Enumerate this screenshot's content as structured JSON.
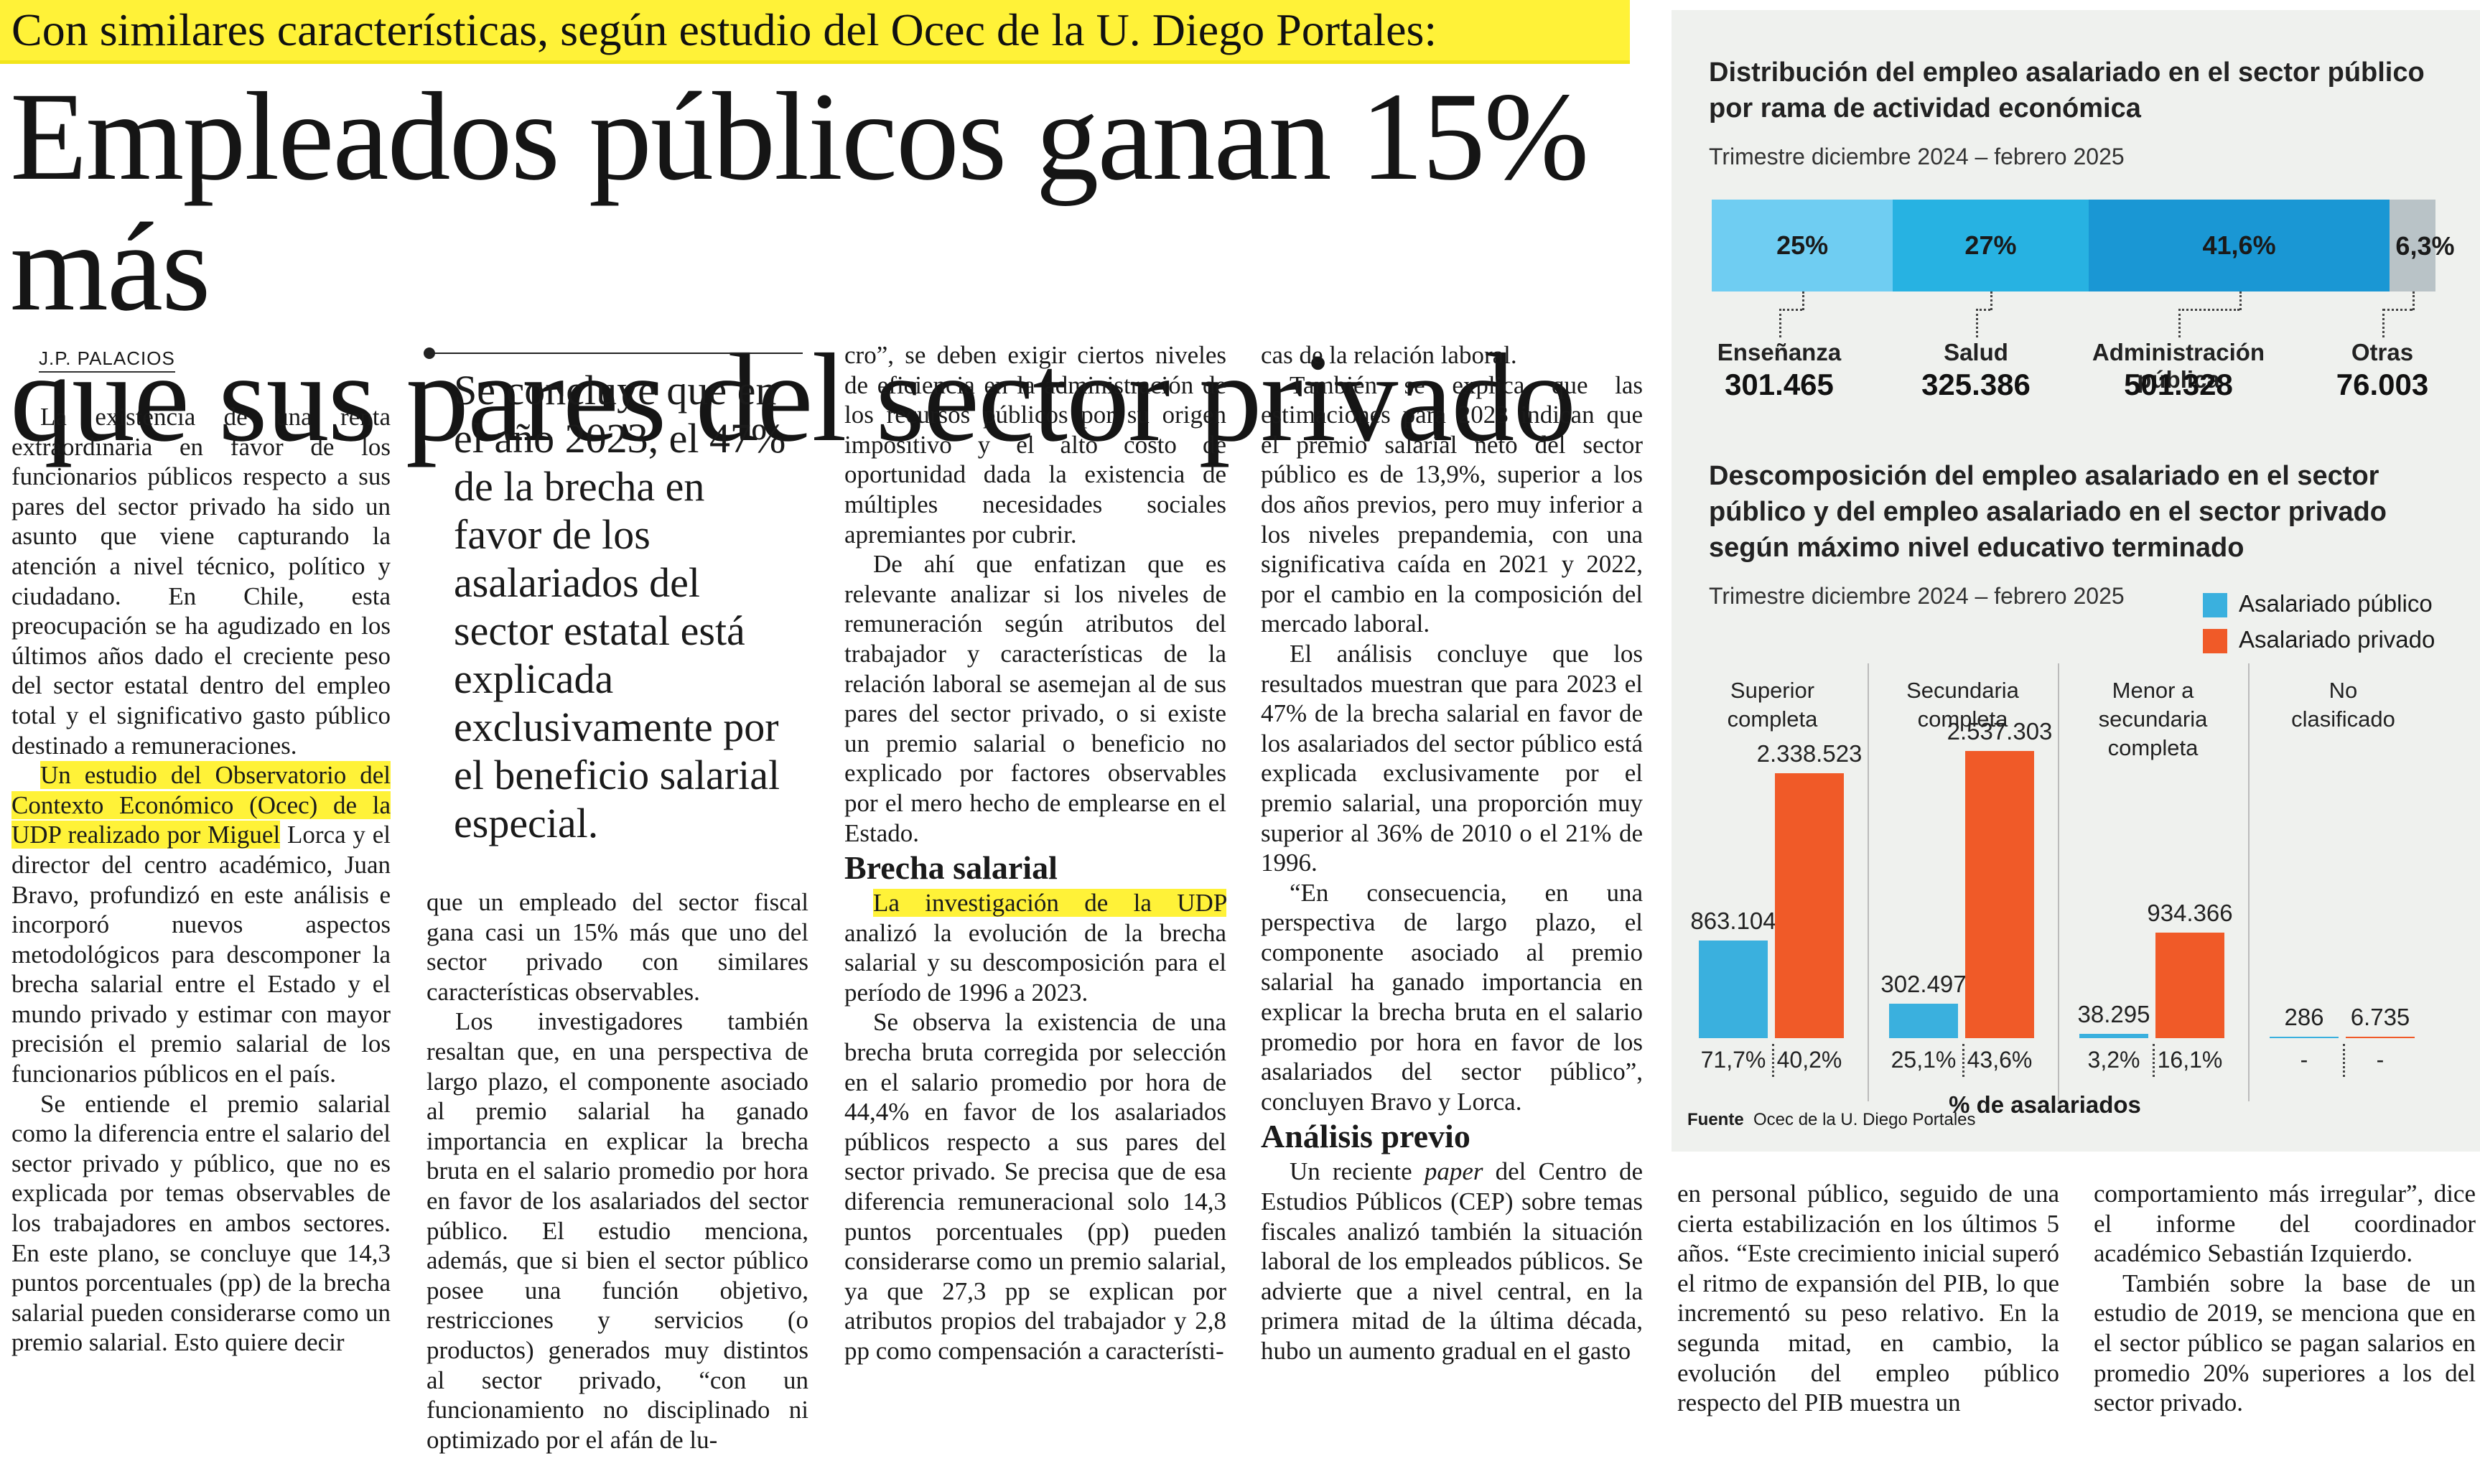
{
  "kicker": "Con similares características, según estudio del Ocec de la U. Diego Portales:",
  "headline": {
    "line1": "Empleados públicos ganan 15% más",
    "line2": "que sus pares del sector privado"
  },
  "byline": "J.P. PALACIOS",
  "pull_quote": "Se concluye que en el año 2023, el 47% de la brecha en favor de los asalariados del sector estatal está explicada exclusivamente por el beneficio salarial especial.",
  "col1": {
    "p1": "La existencia de una renta extraordinaria en favor de los funcionarios públicos respecto a sus pares del sector privado ha sido un asunto que viene capturando la atención a nivel técnico, político y ciudadano. En Chile, esta preocupación se ha agudizado en los últimos años dado el creciente peso del sector estatal dentro del empleo total y el significativo gasto público destinado a remuneraciones.",
    "p2_hl": "Un estudio del Observatorio del Contexto Económico (Ocec) de la UDP realizado por Miguel",
    "p2_rest": "Lorca y el director del centro académico, Juan Bravo, profundizó en este análisis e incorporó nuevos aspectos metodológicos para descomponer la brecha salarial entre el Estado y el mundo privado y estimar con mayor precisión el premio salarial de los funcionarios públicos en el país.",
    "p3": "Se entiende el premio salarial como la diferencia entre el salario del sector privado y público, que no es explicada por temas observables de los trabajadores en ambos sectores. En este plano, se concluye que 14,3 puntos porcentuales (pp) de la brecha salarial pueden considerarse como un premio salarial. Esto quiere decir"
  },
  "col2": {
    "p1": "que un empleado del sector fiscal gana casi un 15% más que uno del sector privado con similares características observables.",
    "p2": "Los investigadores también resaltan que, en una perspectiva de largo plazo, el componente asociado al premio salarial ha ganado importancia en explicar la brecha bruta en el salario promedio por hora en favor de los asalariados del sector público. El estudio menciona, además, que si bien el sector público posee una función objetivo, restricciones y servicios (o productos) generados muy distintos al sector privado, “con un funcionamiento no disciplinado ni optimizado por el afán de lu-"
  },
  "col3": {
    "p1": "cro”, se deben exigir ciertos niveles de eficiencia en la administración de los recursos públicos por su origen impositivo y el alto costo de oportunidad dada la existencia de múltiples necesidades sociales apremiantes por cubrir.",
    "p2": "De ahí que enfatizan que es relevante analizar si los niveles de remuneración según atributos del trabajador y características de la relación laboral se asemejan al de sus pares del sector privado, o si existe un premio salarial o beneficio no explicado por factores observables por el mero hecho de emplearse en el Estado.",
    "sub": "Brecha salarial",
    "p3_hl": "La investigación de la UDP",
    "p3_rest": "analizó la evolución de la brecha salarial y su descomposición para el período de 1996 a 2023.",
    "p4": "Se observa la existencia de una brecha bruta corregida por selección en el salario promedio por hora de 44,4% en favor de los asalariados públicos respecto a sus pares del sector privado. Se precisa que de esa diferencia remuneracional solo 14,3 puntos porcentuales (pp) pueden considerarse como un premio salarial, ya que 27,3 pp se explican por atributos propios del trabajador y 2,8 pp como compensación a característi-"
  },
  "col4": {
    "p1": "cas de la relación laboral.",
    "p2": "También se explica que las estimaciones para 2023 indican que el premio salarial neto del sector público es de 13,9%, superior a los dos años previos, pero muy inferior a los niveles prepandemia, con una significativa caída en 2021 y 2022, por el cambio en la composición del mercado laboral.",
    "p3": "El análisis concluye que los resultados muestran que para 2023 el 47% de la brecha salarial en favor de los asalariados del sector público está explicada exclusivamente por el premio salarial, una proporción muy superior al 36% de 2010 o el 21% de 1996.",
    "p4": "“En consecuencia, en una perspectiva de largo plazo, el componente asociado al premio salarial ha ganado importancia en explicar la brecha bruta en el salario promedio por hora en favor de los asalariados del sector público”, concluyen Bravo y Lorca.",
    "sub": "Análisis previo",
    "p5_a": "Un reciente ",
    "p5_em": "paper",
    "p5_b": " del Centro de Estudios Públicos (CEP) sobre temas fiscales analizó también la situación laboral de los empleados públicos. Se advierte que a nivel central, en la primera mitad de la última década, hubo un aumento gradual en el gasto"
  },
  "col5": {
    "p1": "en personal público, seguido de una cierta estabilización en los últimos 5 años. “Este crecimiento inicial superó el ritmo de expansión del PIB, lo que incrementó su peso relativo. En la segunda mitad, en cambio, la evolución del empleo público respecto del PIB muestra un"
  },
  "col6": {
    "p1": "comportamiento más irregular”, dice el informe del coordinador académico Sebastián Izquierdo.",
    "p2": "También sobre la base de un estudio de 2019, se menciona que en el sector público se pagan salarios en promedio 20% superiores a los del sector privado."
  },
  "chart_data": [
    {
      "type": "bar",
      "title": "Distribución del empleo asalariado en el sector público por rama de actividad económica",
      "subtitle": "Trimestre diciembre 2024 – febrero 2025",
      "stacked": true,
      "orientation": "horizontal",
      "categories": [
        "Enseñanza",
        "Salud",
        "Administración pública",
        "Otras"
      ],
      "pct_labels": [
        "25%",
        "27%",
        "41,6%",
        "6,3%"
      ],
      "values": [
        25,
        27,
        41.6,
        6.3
      ],
      "count_labels": [
        "301.465",
        "325.386",
        "501.328",
        "76.003"
      ],
      "counts": [
        301465,
        325386,
        501328,
        76003
      ],
      "colors": [
        "#6fcdf2",
        "#27b2e2",
        "#1a97d4",
        "#b9c3c7"
      ]
    },
    {
      "type": "bar",
      "title": "Descomposición del empleo asalariado en el sector público y del empleo asalariado en el sector privado según máximo nivel educativo terminado",
      "subtitle": "Trimestre diciembre 2024 – febrero 2025",
      "legend": "top-right",
      "categories": [
        "Superior completa",
        "Secundaria completa",
        "Menor a secundaria completa",
        "No clasificado"
      ],
      "series": [
        {
          "name": "Asalariado público",
          "color": "#3ab0de",
          "values": [
            863104,
            302497,
            38295,
            286
          ],
          "labels": [
            "863.104",
            "302.497",
            "38.295",
            "286"
          ],
          "pct": [
            "71,7%",
            "25,1%",
            "3,2%",
            "-"
          ]
        },
        {
          "name": "Asalariado privado",
          "color": "#f05a28",
          "values": [
            2338523,
            2537303,
            934366,
            6735
          ],
          "labels": [
            "2.338.523",
            "2.537.303",
            "934.366",
            "6.735"
          ],
          "pct": [
            "40,2%",
            "43,6%",
            "16,1%",
            "-"
          ]
        }
      ],
      "xlabel": "% de asalariados",
      "ylim": [
        0,
        2537303
      ]
    }
  ],
  "source": {
    "label": "Fuente",
    "text": "Ocec de la U. Diego Portales"
  }
}
